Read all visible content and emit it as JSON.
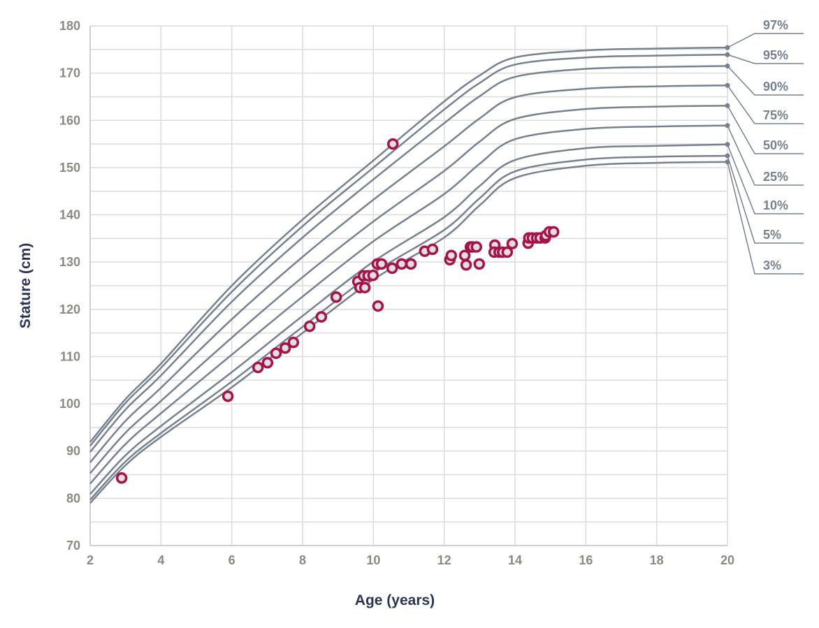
{
  "chart_data": {
    "type": "line",
    "title": "",
    "xlabel": "Age (years)",
    "ylabel": "Stature (cm)",
    "xlim": [
      2,
      20
    ],
    "ylim": [
      70,
      180
    ],
    "x_ticks": [
      "2",
      "4",
      "6",
      "8",
      "10",
      "12",
      "14",
      "16",
      "18",
      "20"
    ],
    "y_ticks": [
      "70",
      "80",
      "90",
      "100",
      "110",
      "120",
      "130",
      "140",
      "150",
      "160",
      "170",
      "180"
    ],
    "grid": true,
    "percentile_ages": [
      2,
      3,
      4,
      6,
      8,
      10,
      12,
      13,
      14,
      16,
      18,
      20
    ],
    "percentiles": [
      {
        "name": "97%",
        "values": [
          91.9,
          101,
          108.5,
          125,
          139,
          151.5,
          164,
          169.5,
          173.3,
          174.8,
          175.2,
          175.4
        ]
      },
      {
        "name": "95%",
        "values": [
          91.1,
          100.2,
          107.6,
          123.7,
          137.6,
          150,
          162.3,
          167.9,
          171.8,
          173.3,
          173.7,
          173.9
        ]
      },
      {
        "name": "90%",
        "values": [
          89.8,
          98.8,
          106,
          121.6,
          135.2,
          147.5,
          159.4,
          165.1,
          169.2,
          170.9,
          171.3,
          171.5
        ]
      },
      {
        "name": "75%",
        "values": [
          87.6,
          96.4,
          103.4,
          117.9,
          131.1,
          143.2,
          154.5,
          160.4,
          164.9,
          166.7,
          167.2,
          167.4
        ]
      },
      {
        "name": "50%",
        "values": [
          85.3,
          93.9,
          100.6,
          114,
          126.8,
          138.6,
          149.3,
          155.5,
          160.3,
          162.4,
          162.9,
          163.1
        ]
      },
      {
        "name": "25%",
        "values": [
          83.1,
          91.5,
          98,
          110.4,
          122.7,
          134.4,
          144.4,
          150.8,
          156,
          158.2,
          158.7,
          158.9
        ]
      },
      {
        "name": "10%",
        "values": [
          80.9,
          89.1,
          95.3,
          106.7,
          118.6,
          130.1,
          139.5,
          146.1,
          151.6,
          154.1,
          154.6,
          154.9
        ]
      },
      {
        "name": "5%",
        "values": [
          79.7,
          87.8,
          93.8,
          104.7,
          116.3,
          127.7,
          136.8,
          143.5,
          149.2,
          151.7,
          152.3,
          152.5
        ]
      },
      {
        "name": "3%",
        "values": [
          79,
          87,
          93,
          103.5,
          115,
          126.3,
          135.2,
          142,
          147.8,
          150.4,
          151,
          151.2
        ]
      }
    ],
    "measurements": [
      [
        2.89,
        84.3
      ],
      [
        5.89,
        101.6
      ],
      [
        6.74,
        107.7
      ],
      [
        7.01,
        108.7
      ],
      [
        7.25,
        110.7
      ],
      [
        7.51,
        111.8
      ],
      [
        7.74,
        113.0
      ],
      [
        8.2,
        116.4
      ],
      [
        8.53,
        118.4
      ],
      [
        8.95,
        122.6
      ],
      [
        9.56,
        125.9
      ],
      [
        9.62,
        124.6
      ],
      [
        9.76,
        124.6
      ],
      [
        9.72,
        127.1
      ],
      [
        9.85,
        127.1
      ],
      [
        9.99,
        127.2
      ],
      [
        10.11,
        129.6
      ],
      [
        10.23,
        129.6
      ],
      [
        10.13,
        120.7
      ],
      [
        10.55,
        155.0
      ],
      [
        10.53,
        128.7
      ],
      [
        10.8,
        129.6
      ],
      [
        11.06,
        129.6
      ],
      [
        11.45,
        132.3
      ],
      [
        11.67,
        132.7
      ],
      [
        12.16,
        130.5
      ],
      [
        12.2,
        131.4
      ],
      [
        12.58,
        131.4
      ],
      [
        12.62,
        129.4
      ],
      [
        12.74,
        133.2
      ],
      [
        12.8,
        133.2
      ],
      [
        12.91,
        133.2
      ],
      [
        12.99,
        129.6
      ],
      [
        13.43,
        133.6
      ],
      [
        13.41,
        132.1
      ],
      [
        13.55,
        132.1
      ],
      [
        13.65,
        132.1
      ],
      [
        13.78,
        132.1
      ],
      [
        13.92,
        133.9
      ],
      [
        14.37,
        134.0
      ],
      [
        14.39,
        135.1
      ],
      [
        14.49,
        135.1
      ],
      [
        14.61,
        135.1
      ],
      [
        14.71,
        135.1
      ],
      [
        14.85,
        135.1
      ],
      [
        14.87,
        135.6
      ],
      [
        14.97,
        136.4
      ],
      [
        15.09,
        136.4
      ]
    ],
    "colors": {
      "curve": "#76808f",
      "marker_stroke": "#a8124a",
      "marker_fill": "#e0e0e0",
      "grid": "#dcdcdc",
      "axis_title": "#2b3452",
      "tick": "#8a8a80"
    }
  }
}
